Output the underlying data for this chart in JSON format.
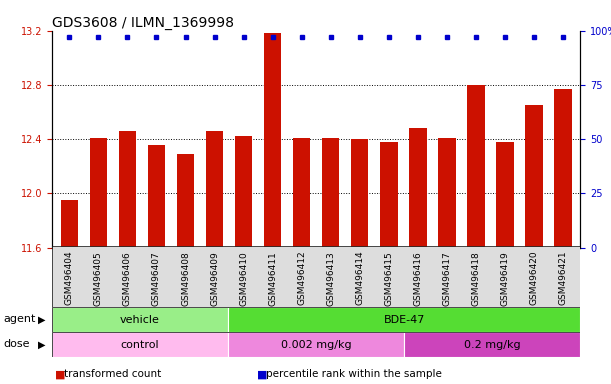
{
  "title": "GDS3608 / ILMN_1369998",
  "samples": [
    "GSM496404",
    "GSM496405",
    "GSM496406",
    "GSM496407",
    "GSM496408",
    "GSM496409",
    "GSM496410",
    "GSM496411",
    "GSM496412",
    "GSM496413",
    "GSM496414",
    "GSM496415",
    "GSM496416",
    "GSM496417",
    "GSM496418",
    "GSM496419",
    "GSM496420",
    "GSM496421"
  ],
  "bar_values": [
    11.95,
    12.41,
    12.46,
    12.36,
    12.29,
    12.46,
    12.42,
    13.18,
    12.41,
    12.41,
    12.4,
    12.38,
    12.48,
    12.41,
    12.8,
    12.38,
    12.65,
    12.77
  ],
  "percentile_values": [
    100,
    100,
    100,
    100,
    100,
    100,
    100,
    100,
    100,
    100,
    100,
    100,
    100,
    100,
    100,
    100,
    100,
    100
  ],
  "bar_color": "#cc1100",
  "percentile_color": "#0000cc",
  "ylim_left": [
    11.6,
    13.2
  ],
  "ylim_right": [
    0,
    100
  ],
  "yticks_left": [
    11.6,
    12.0,
    12.4,
    12.8,
    13.2
  ],
  "yticks_right": [
    0,
    25,
    50,
    75,
    100
  ],
  "ytick_labels_right": [
    "0",
    "25",
    "50",
    "75",
    "100%"
  ],
  "grid_values": [
    12.0,
    12.4,
    12.8
  ],
  "agent_groups": [
    {
      "label": "vehicle",
      "start": 0,
      "end": 6,
      "color": "#99ee88"
    },
    {
      "label": "BDE-47",
      "start": 6,
      "end": 18,
      "color": "#55dd33"
    }
  ],
  "dose_groups": [
    {
      "label": "control",
      "start": 0,
      "end": 6,
      "color": "#ffbbee"
    },
    {
      "label": "0.002 mg/kg",
      "start": 6,
      "end": 12,
      "color": "#ee88dd"
    },
    {
      "label": "0.2 mg/kg",
      "start": 12,
      "end": 18,
      "color": "#cc44bb"
    }
  ],
  "legend_items": [
    {
      "color": "#cc1100",
      "label": "transformed count"
    },
    {
      "color": "#0000cc",
      "label": "percentile rank within the sample"
    }
  ],
  "title_fontsize": 10,
  "tick_fontsize": 7,
  "label_fontsize": 8,
  "xtick_fontsize": 6.5
}
